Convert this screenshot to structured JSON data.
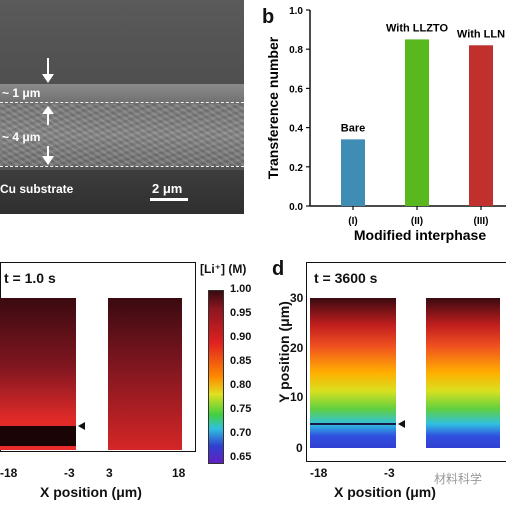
{
  "panel_letters": {
    "b": "b",
    "d": "d"
  },
  "panel_a": {
    "label_1um": "~ 1 μm",
    "label_4um": "~ 4 μm",
    "label_substrate": "Cu substrate",
    "scale_bar": "2 μm"
  },
  "panel_c": {
    "title": "t = 1.0 s",
    "x_ticks": [
      "-18",
      "-3",
      "3",
      "18"
    ],
    "xlabel": "X position (μm)"
  },
  "panel_d": {
    "title": "t = 3600 s",
    "x_ticks": [
      "-18",
      "-3",
      "3",
      "18"
    ],
    "xlabel": "X position (μm)",
    "ylabel": "Y position (μm)",
    "y_ticks": [
      "0",
      "10",
      "20",
      "30"
    ]
  },
  "colorbar": {
    "label": "[Li⁺] (M)",
    "ticks": [
      "1.00",
      "0.95",
      "0.90",
      "0.85",
      "0.80",
      "0.75",
      "0.70",
      "0.65"
    ],
    "colors": {
      "high": "#3a0a10",
      "mid_red": "#e02020",
      "yellow": "#e0e020",
      "green": "#40d040",
      "cyan": "#30c0e0",
      "blue": "#3040d0",
      "violet": "#6020c0"
    }
  },
  "watermark": "材料科学",
  "chart_data": {
    "type": "bar",
    "categories": [
      "(I)",
      "(II)",
      "(III)"
    ],
    "category_labels": [
      "Bare",
      "With LLZTO",
      "With LLN"
    ],
    "values": [
      0.34,
      0.85,
      0.82
    ],
    "colors": [
      "#3f8db5",
      "#58b81e",
      "#c0302c"
    ],
    "xlabel": "Modified interphase",
    "ylabel": "Transference number",
    "ylim": [
      0,
      1.0
    ],
    "y_ticks": [
      "0.0",
      "0.2",
      "0.4",
      "0.6",
      "0.8",
      "1.0"
    ],
    "grid": false
  }
}
